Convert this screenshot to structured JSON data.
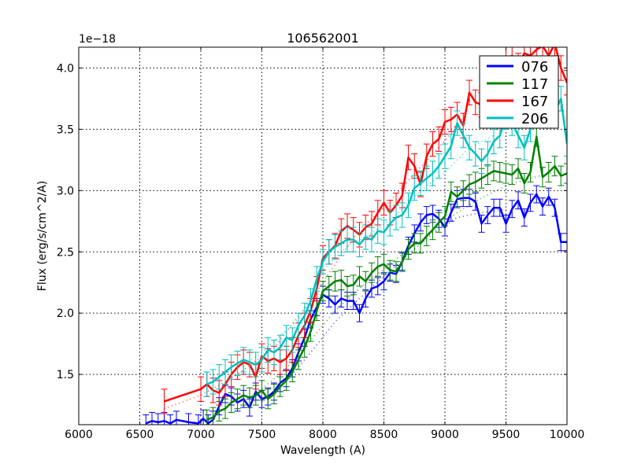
{
  "chart_data": {
    "type": "line",
    "title": "106562001",
    "xlabel": "Wavelength (A)",
    "ylabel": "Flux (erg/s/cm^2/A)",
    "y_offset_label": "1e−18",
    "xlim": [
      6000,
      10000
    ],
    "ylim": [
      1.09,
      4.17
    ],
    "xticks": [
      6000,
      6500,
      7000,
      7500,
      8000,
      8500,
      9000,
      9500,
      10000
    ],
    "xtick_labels": [
      "6000",
      "6500",
      "7000",
      "7500",
      "8000",
      "8500",
      "9000",
      "9500",
      "10000"
    ],
    "yticks": [
      1.5,
      2.0,
      2.5,
      3.0,
      3.5,
      4.0
    ],
    "ytick_labels": [
      "1.5",
      "2.0",
      "2.5",
      "3.0",
      "3.5",
      "4.0"
    ],
    "grid": true,
    "grid_style": "dotted",
    "legend_position": "upper right",
    "series": [
      {
        "name": "076",
        "color": "#0000ff",
        "err": 0.07,
        "x": [
          6550,
          6600,
          6650,
          6700,
          6750,
          6800,
          6900,
          6980,
          7020,
          7060,
          7100,
          7150,
          7200,
          7250,
          7300,
          7350,
          7400,
          7450,
          7500,
          7550,
          7600,
          7650,
          7700,
          7750,
          7800,
          7850,
          7900,
          7950,
          8000,
          8050,
          8100,
          8150,
          8200,
          8250,
          8300,
          8350,
          8400,
          8450,
          8500,
          8550,
          8600,
          8650,
          8700,
          8750,
          8800,
          8850,
          8900,
          8950,
          9000,
          9050,
          9100,
          9150,
          9200,
          9250,
          9300,
          9350,
          9400,
          9450,
          9500,
          9550,
          9600,
          9650,
          9700,
          9750,
          9800,
          9850,
          9900,
          9950,
          10000
        ],
        "y": [
          1.1,
          1.12,
          1.11,
          1.12,
          1.1,
          1.13,
          1.11,
          1.1,
          1.14,
          1.1,
          1.13,
          1.24,
          1.34,
          1.32,
          1.27,
          1.3,
          1.23,
          1.36,
          1.3,
          1.32,
          1.36,
          1.43,
          1.47,
          1.55,
          1.68,
          1.8,
          1.95,
          2.05,
          2.15,
          2.12,
          2.07,
          2.12,
          2.1,
          2.1,
          2.0,
          2.12,
          2.2,
          2.22,
          2.26,
          2.33,
          2.32,
          2.42,
          2.55,
          2.65,
          2.74,
          2.8,
          2.81,
          2.77,
          2.7,
          2.82,
          2.93,
          2.94,
          2.94,
          2.91,
          2.73,
          2.8,
          2.86,
          2.86,
          2.73,
          2.85,
          2.92,
          2.78,
          2.9,
          2.97,
          2.87,
          2.95,
          2.86,
          2.58,
          2.58
        ]
      },
      {
        "name": "117",
        "color": "#008000",
        "err": 0.08,
        "x": [
          7050,
          7100,
          7150,
          7200,
          7250,
          7300,
          7350,
          7400,
          7450,
          7500,
          7550,
          7600,
          7650,
          7700,
          7750,
          7800,
          7850,
          7900,
          7950,
          8000,
          8050,
          8100,
          8150,
          8200,
          8250,
          8300,
          8350,
          8400,
          8450,
          8500,
          8550,
          8600,
          8650,
          8700,
          8750,
          8800,
          8850,
          8900,
          8950,
          9000,
          9050,
          9100,
          9150,
          9200,
          9250,
          9300,
          9350,
          9400,
          9450,
          9500,
          9550,
          9600,
          9650,
          9700,
          9750,
          9800,
          9850,
          9900,
          9950,
          10000
        ],
        "y": [
          1.13,
          1.15,
          1.2,
          1.22,
          1.27,
          1.3,
          1.33,
          1.31,
          1.33,
          1.37,
          1.3,
          1.34,
          1.4,
          1.45,
          1.52,
          1.62,
          1.72,
          1.85,
          2.02,
          2.18,
          2.22,
          2.26,
          2.27,
          2.22,
          2.23,
          2.3,
          2.26,
          2.33,
          2.38,
          2.4,
          2.35,
          2.34,
          2.42,
          2.52,
          2.57,
          2.57,
          2.63,
          2.68,
          2.74,
          2.79,
          2.99,
          2.95,
          3.0,
          3.05,
          3.07,
          3.1,
          3.13,
          3.16,
          3.15,
          3.14,
          3.13,
          3.18,
          3.06,
          3.15,
          3.44,
          3.11,
          3.15,
          3.2,
          3.12,
          3.14
        ]
      },
      {
        "name": "167",
        "color": "#ff0000",
        "err": 0.1,
        "x": [
          6700,
          7000,
          7050,
          7100,
          7150,
          7200,
          7250,
          7300,
          7350,
          7400,
          7450,
          7500,
          7550,
          7600,
          7650,
          7700,
          7750,
          7800,
          7850,
          7900,
          7950,
          8000,
          8050,
          8100,
          8150,
          8200,
          8250,
          8300,
          8350,
          8400,
          8450,
          8500,
          8550,
          8600,
          8650,
          8700,
          8750,
          8800,
          8850,
          8900,
          8950,
          9000,
          9050,
          9100,
          9150,
          9200,
          9250,
          9300,
          9350,
          9400,
          9450,
          9500,
          9550,
          9600,
          9650,
          9700,
          9750,
          9800,
          9850,
          9900,
          9950,
          10000
        ],
        "y": [
          1.28,
          1.38,
          1.42,
          1.37,
          1.35,
          1.42,
          1.5,
          1.56,
          1.6,
          1.58,
          1.48,
          1.65,
          1.61,
          1.63,
          1.6,
          1.63,
          1.7,
          1.82,
          1.9,
          2.02,
          2.2,
          2.45,
          2.5,
          2.55,
          2.67,
          2.71,
          2.68,
          2.64,
          2.7,
          2.73,
          2.82,
          2.9,
          2.82,
          2.88,
          2.96,
          3.27,
          3.2,
          3.05,
          3.28,
          3.38,
          3.42,
          3.56,
          3.58,
          3.62,
          3.53,
          3.8,
          3.72,
          3.7,
          3.72,
          3.86,
          3.95,
          4.08,
          4.1,
          4.02,
          4.12,
          4.1,
          4.15,
          4.18,
          4.1,
          4.2,
          4.0,
          3.88
        ]
      },
      {
        "name": "206",
        "color": "#00bfbf",
        "err": 0.1,
        "x": [
          7050,
          7100,
          7150,
          7200,
          7250,
          7300,
          7350,
          7400,
          7450,
          7500,
          7550,
          7600,
          7650,
          7700,
          7750,
          7800,
          7850,
          7900,
          7950,
          8000,
          8050,
          8100,
          8150,
          8200,
          8250,
          8300,
          8350,
          8400,
          8450,
          8500,
          8550,
          8600,
          8650,
          8700,
          8750,
          8800,
          8850,
          8900,
          8950,
          9000,
          9050,
          9100,
          9150,
          9200,
          9250,
          9300,
          9350,
          9400,
          9450,
          9500,
          9550,
          9600,
          9650,
          9700,
          9750,
          9800,
          9850,
          9900,
          9950,
          10000
        ],
        "y": [
          1.42,
          1.44,
          1.48,
          1.52,
          1.56,
          1.59,
          1.62,
          1.6,
          1.58,
          1.62,
          1.7,
          1.68,
          1.72,
          1.8,
          1.78,
          1.9,
          1.98,
          2.1,
          2.28,
          2.42,
          2.5,
          2.54,
          2.57,
          2.6,
          2.6,
          2.56,
          2.62,
          2.6,
          2.67,
          2.66,
          2.73,
          2.78,
          2.8,
          2.88,
          3.02,
          3.06,
          3.1,
          3.14,
          3.2,
          3.28,
          3.36,
          3.55,
          3.45,
          3.35,
          3.3,
          3.24,
          3.3,
          3.4,
          3.45,
          3.6,
          3.55,
          3.45,
          3.35,
          3.5,
          3.62,
          3.7,
          3.68,
          3.64,
          3.75,
          3.38
        ]
      }
    ],
    "smooth_series": [
      {
        "name": "076-fit",
        "color": "#0000ff",
        "x": [
          7500,
          7700,
          7900,
          8100,
          8300,
          8500,
          8700,
          8900,
          9100,
          9300,
          9500
        ],
        "y": [
          1.28,
          1.44,
          1.68,
          1.93,
          2.12,
          2.3,
          2.48,
          2.65,
          2.78,
          2.82,
          2.85
        ]
      },
      {
        "name": "117-fit",
        "color": "#008000",
        "x": [
          7500,
          7700,
          7900,
          8100,
          8300,
          8500,
          8700,
          8900,
          9100,
          9300,
          9500,
          9700,
          9900
        ],
        "y": [
          1.38,
          1.55,
          1.78,
          2.02,
          2.2,
          2.36,
          2.52,
          2.66,
          2.82,
          2.94,
          3.04,
          3.1,
          3.15
        ]
      },
      {
        "name": "167-fit",
        "color": "#ff0000",
        "x": [
          6700,
          7000,
          7300,
          7600,
          7900,
          8100,
          8300,
          8500,
          8700,
          8900,
          9100
        ],
        "y": [
          1.22,
          1.33,
          1.5,
          1.72,
          2.1,
          2.4,
          2.68,
          2.86,
          3.08,
          3.3,
          3.52
        ]
      },
      {
        "name": "206-fit",
        "color": "#00bfbf",
        "x": [
          7200,
          7500,
          7800,
          8000,
          8200,
          8400,
          8600,
          8800,
          9000,
          9200,
          9400
        ],
        "y": [
          1.48,
          1.68,
          1.95,
          2.35,
          2.55,
          2.65,
          2.8,
          3.0,
          3.15,
          3.35,
          3.45
        ]
      }
    ]
  },
  "legend": {
    "items": [
      {
        "label": "076",
        "color": "#0000ff"
      },
      {
        "label": "117",
        "color": "#008000"
      },
      {
        "label": "167",
        "color": "#ff0000"
      },
      {
        "label": "206",
        "color": "#00bfbf"
      }
    ]
  }
}
